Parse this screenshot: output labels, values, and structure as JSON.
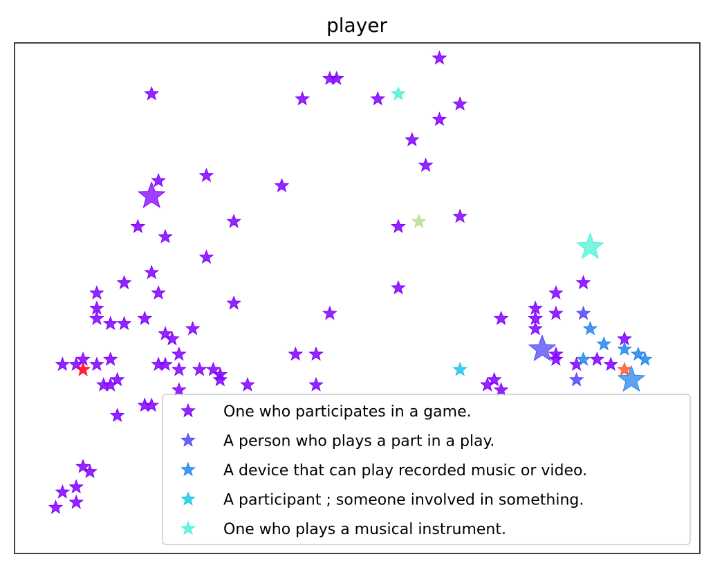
{
  "chart_data": {
    "type": "scatter",
    "title": "player",
    "xlabel": "",
    "ylabel": "",
    "xlim": [
      0,
      1
    ],
    "ylim": [
      0,
      1
    ],
    "grid": false,
    "ticks": false,
    "legend_placement": "lower-right",
    "series": [
      {
        "name": "One who participates in a game.",
        "color": "#8000ff",
        "points": [
          [
            0.07,
            0.12
          ],
          [
            0.06,
            0.09
          ],
          [
            0.09,
            0.13
          ],
          [
            0.09,
            0.1
          ],
          [
            0.1,
            0.17
          ],
          [
            0.11,
            0.16
          ],
          [
            0.07,
            0.37
          ],
          [
            0.09,
            0.37
          ],
          [
            0.1,
            0.38
          ],
          [
            0.12,
            0.37
          ],
          [
            0.14,
            0.38
          ],
          [
            0.13,
            0.33
          ],
          [
            0.14,
            0.33
          ],
          [
            0.15,
            0.34
          ],
          [
            0.12,
            0.48
          ],
          [
            0.12,
            0.46
          ],
          [
            0.14,
            0.45
          ],
          [
            0.15,
            0.27
          ],
          [
            0.16,
            0.45
          ],
          [
            0.12,
            0.51
          ],
          [
            0.19,
            0.29
          ],
          [
            0.19,
            0.46
          ],
          [
            0.21,
            0.37
          ],
          [
            0.21,
            0.51
          ],
          [
            0.22,
            0.43
          ],
          [
            0.23,
            0.42
          ],
          [
            0.24,
            0.39
          ],
          [
            0.24,
            0.36
          ],
          [
            0.26,
            0.44
          ],
          [
            0.27,
            0.36
          ],
          [
            0.29,
            0.36
          ],
          [
            0.3,
            0.34
          ],
          [
            0.3,
            0.35
          ],
          [
            0.2,
            0.9
          ],
          [
            0.21,
            0.73
          ],
          [
            0.22,
            0.62
          ],
          [
            0.18,
            0.64
          ],
          [
            0.2,
            0.55
          ],
          [
            0.28,
            0.74
          ],
          [
            0.28,
            0.58
          ],
          [
            0.32,
            0.49
          ],
          [
            0.32,
            0.65
          ],
          [
            0.39,
            0.72
          ],
          [
            0.41,
            0.39
          ],
          [
            0.44,
            0.33
          ],
          [
            0.44,
            0.39
          ],
          [
            0.46,
            0.47
          ],
          [
            0.42,
            0.89
          ],
          [
            0.46,
            0.93
          ],
          [
            0.47,
            0.93
          ],
          [
            0.53,
            0.89
          ],
          [
            0.56,
            0.64
          ],
          [
            0.56,
            0.52
          ],
          [
            0.58,
            0.81
          ],
          [
            0.6,
            0.76
          ],
          [
            0.62,
            0.97
          ],
          [
            0.62,
            0.85
          ],
          [
            0.65,
            0.88
          ],
          [
            0.65,
            0.66
          ],
          [
            0.71,
            0.46
          ],
          [
            0.69,
            0.33
          ],
          [
            0.7,
            0.34
          ],
          [
            0.71,
            0.32
          ],
          [
            0.76,
            0.44
          ],
          [
            0.76,
            0.46
          ],
          [
            0.76,
            0.48
          ],
          [
            0.79,
            0.47
          ],
          [
            0.79,
            0.51
          ],
          [
            0.79,
            0.38
          ],
          [
            0.79,
            0.39
          ],
          [
            0.82,
            0.37
          ],
          [
            0.83,
            0.53
          ],
          [
            0.85,
            0.38
          ],
          [
            0.87,
            0.37
          ],
          [
            0.89,
            0.42
          ],
          [
            0.16,
            0.53
          ],
          [
            0.2,
            0.29
          ],
          [
            0.22,
            0.37
          ],
          [
            0.24,
            0.32
          ],
          [
            0.34,
            0.33
          ]
        ],
        "big_points": [
          [
            0.2,
            0.7
          ]
        ]
      },
      {
        "name": "A person who plays a part in a play.",
        "color": "#4f47f8",
        "points": [
          [
            0.83,
            0.47
          ],
          [
            0.82,
            0.34
          ]
        ],
        "big_points": [
          [
            0.77,
            0.4
          ]
        ]
      },
      {
        "name": "A device that can play recorded music or video.",
        "color": "#2385ee",
        "points": [
          [
            0.84,
            0.44
          ],
          [
            0.86,
            0.41
          ],
          [
            0.83,
            0.38
          ],
          [
            0.91,
            0.39
          ],
          [
            0.92,
            0.38
          ],
          [
            0.89,
            0.4
          ]
        ],
        "big_points": [
          [
            0.9,
            0.34
          ]
        ]
      },
      {
        "name": "A participant ; someone involved in something.",
        "color": "#1fc6e4",
        "points": [
          [
            0.65,
            0.36
          ]
        ],
        "big_points": []
      },
      {
        "name": "One who plays a musical instrument.",
        "color": "#4df2d6",
        "points": [
          [
            0.56,
            0.9
          ]
        ],
        "big_points": [
          [
            0.84,
            0.6
          ]
        ]
      },
      {
        "name": "",
        "color": "#b2e08d",
        "points": [
          [
            0.59,
            0.65
          ]
        ],
        "big_points": []
      },
      {
        "name": "",
        "color": "#ff5a2e",
        "points": [
          [
            0.89,
            0.36
          ]
        ],
        "big_points": []
      },
      {
        "name": "",
        "color": "#ff0020",
        "points": [
          [
            0.1,
            0.36
          ]
        ],
        "big_points": []
      }
    ],
    "legend": [
      "One who participates in a game.",
      "A person who plays a part in a play.",
      "A device that can play recorded music or video.",
      "A participant ; someone involved in something.",
      "One who plays a musical instrument."
    ]
  }
}
